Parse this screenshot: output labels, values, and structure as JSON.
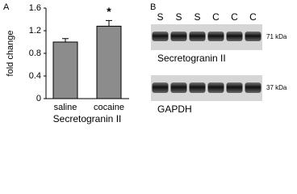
{
  "chart_data": {
    "type": "bar",
    "panel_label": "A",
    "y_label": "fold change",
    "x_label": "Secretogranin II",
    "categories": [
      "saline",
      "cocaine"
    ],
    "values": [
      1.0,
      1.28
    ],
    "errors": [
      0.06,
      0.1
    ],
    "annotations": [
      null,
      "*"
    ],
    "color": "#8c8c8c",
    "ylim": [
      0,
      1.6
    ],
    "yticks": [
      0,
      0.4,
      0.8,
      1.2,
      1.6
    ]
  },
  "blot": {
    "panel_label": "B",
    "lanes": [
      "S",
      "S",
      "S",
      "C",
      "C",
      "C"
    ],
    "panels": [
      {
        "size": "71 kDa",
        "label": "Secretogranin II"
      },
      {
        "size": "37 kDa",
        "label": "GAPDH"
      }
    ]
  }
}
